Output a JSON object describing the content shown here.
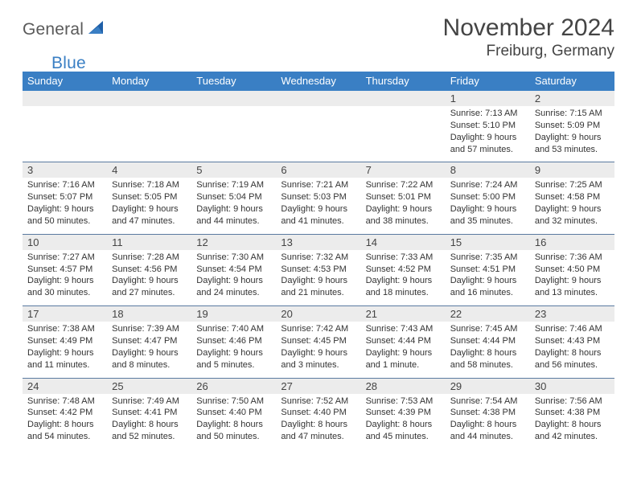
{
  "brand": {
    "part1": "General",
    "part2": "Blue"
  },
  "title": "November 2024",
  "location": "Freiburg, Germany",
  "colors": {
    "header_bg": "#3a7fc4",
    "header_text": "#ffffff",
    "daynum_bg": "#ececec",
    "row_border": "#5a7aa0",
    "text": "#333333",
    "title_text": "#444444",
    "logo_gray": "#5a5a5a",
    "logo_blue": "#3a7fc4"
  },
  "typography": {
    "title_fontsize": 30,
    "location_fontsize": 19,
    "weekday_fontsize": 13,
    "daynum_fontsize": 13,
    "cell_fontsize": 11
  },
  "weekdays": [
    "Sunday",
    "Monday",
    "Tuesday",
    "Wednesday",
    "Thursday",
    "Friday",
    "Saturday"
  ],
  "weeks": [
    [
      null,
      null,
      null,
      null,
      null,
      {
        "day": "1",
        "sunrise": "Sunrise: 7:13 AM",
        "sunset": "Sunset: 5:10 PM",
        "daylight": "Daylight: 9 hours and 57 minutes."
      },
      {
        "day": "2",
        "sunrise": "Sunrise: 7:15 AM",
        "sunset": "Sunset: 5:09 PM",
        "daylight": "Daylight: 9 hours and 53 minutes."
      }
    ],
    [
      {
        "day": "3",
        "sunrise": "Sunrise: 7:16 AM",
        "sunset": "Sunset: 5:07 PM",
        "daylight": "Daylight: 9 hours and 50 minutes."
      },
      {
        "day": "4",
        "sunrise": "Sunrise: 7:18 AM",
        "sunset": "Sunset: 5:05 PM",
        "daylight": "Daylight: 9 hours and 47 minutes."
      },
      {
        "day": "5",
        "sunrise": "Sunrise: 7:19 AM",
        "sunset": "Sunset: 5:04 PM",
        "daylight": "Daylight: 9 hours and 44 minutes."
      },
      {
        "day": "6",
        "sunrise": "Sunrise: 7:21 AM",
        "sunset": "Sunset: 5:03 PM",
        "daylight": "Daylight: 9 hours and 41 minutes."
      },
      {
        "day": "7",
        "sunrise": "Sunrise: 7:22 AM",
        "sunset": "Sunset: 5:01 PM",
        "daylight": "Daylight: 9 hours and 38 minutes."
      },
      {
        "day": "8",
        "sunrise": "Sunrise: 7:24 AM",
        "sunset": "Sunset: 5:00 PM",
        "daylight": "Daylight: 9 hours and 35 minutes."
      },
      {
        "day": "9",
        "sunrise": "Sunrise: 7:25 AM",
        "sunset": "Sunset: 4:58 PM",
        "daylight": "Daylight: 9 hours and 32 minutes."
      }
    ],
    [
      {
        "day": "10",
        "sunrise": "Sunrise: 7:27 AM",
        "sunset": "Sunset: 4:57 PM",
        "daylight": "Daylight: 9 hours and 30 minutes."
      },
      {
        "day": "11",
        "sunrise": "Sunrise: 7:28 AM",
        "sunset": "Sunset: 4:56 PM",
        "daylight": "Daylight: 9 hours and 27 minutes."
      },
      {
        "day": "12",
        "sunrise": "Sunrise: 7:30 AM",
        "sunset": "Sunset: 4:54 PM",
        "daylight": "Daylight: 9 hours and 24 minutes."
      },
      {
        "day": "13",
        "sunrise": "Sunrise: 7:32 AM",
        "sunset": "Sunset: 4:53 PM",
        "daylight": "Daylight: 9 hours and 21 minutes."
      },
      {
        "day": "14",
        "sunrise": "Sunrise: 7:33 AM",
        "sunset": "Sunset: 4:52 PM",
        "daylight": "Daylight: 9 hours and 18 minutes."
      },
      {
        "day": "15",
        "sunrise": "Sunrise: 7:35 AM",
        "sunset": "Sunset: 4:51 PM",
        "daylight": "Daylight: 9 hours and 16 minutes."
      },
      {
        "day": "16",
        "sunrise": "Sunrise: 7:36 AM",
        "sunset": "Sunset: 4:50 PM",
        "daylight": "Daylight: 9 hours and 13 minutes."
      }
    ],
    [
      {
        "day": "17",
        "sunrise": "Sunrise: 7:38 AM",
        "sunset": "Sunset: 4:49 PM",
        "daylight": "Daylight: 9 hours and 11 minutes."
      },
      {
        "day": "18",
        "sunrise": "Sunrise: 7:39 AM",
        "sunset": "Sunset: 4:47 PM",
        "daylight": "Daylight: 9 hours and 8 minutes."
      },
      {
        "day": "19",
        "sunrise": "Sunrise: 7:40 AM",
        "sunset": "Sunset: 4:46 PM",
        "daylight": "Daylight: 9 hours and 5 minutes."
      },
      {
        "day": "20",
        "sunrise": "Sunrise: 7:42 AM",
        "sunset": "Sunset: 4:45 PM",
        "daylight": "Daylight: 9 hours and 3 minutes."
      },
      {
        "day": "21",
        "sunrise": "Sunrise: 7:43 AM",
        "sunset": "Sunset: 4:44 PM",
        "daylight": "Daylight: 9 hours and 1 minute."
      },
      {
        "day": "22",
        "sunrise": "Sunrise: 7:45 AM",
        "sunset": "Sunset: 4:44 PM",
        "daylight": "Daylight: 8 hours and 58 minutes."
      },
      {
        "day": "23",
        "sunrise": "Sunrise: 7:46 AM",
        "sunset": "Sunset: 4:43 PM",
        "daylight": "Daylight: 8 hours and 56 minutes."
      }
    ],
    [
      {
        "day": "24",
        "sunrise": "Sunrise: 7:48 AM",
        "sunset": "Sunset: 4:42 PM",
        "daylight": "Daylight: 8 hours and 54 minutes."
      },
      {
        "day": "25",
        "sunrise": "Sunrise: 7:49 AM",
        "sunset": "Sunset: 4:41 PM",
        "daylight": "Daylight: 8 hours and 52 minutes."
      },
      {
        "day": "26",
        "sunrise": "Sunrise: 7:50 AM",
        "sunset": "Sunset: 4:40 PM",
        "daylight": "Daylight: 8 hours and 50 minutes."
      },
      {
        "day": "27",
        "sunrise": "Sunrise: 7:52 AM",
        "sunset": "Sunset: 4:40 PM",
        "daylight": "Daylight: 8 hours and 47 minutes."
      },
      {
        "day": "28",
        "sunrise": "Sunrise: 7:53 AM",
        "sunset": "Sunset: 4:39 PM",
        "daylight": "Daylight: 8 hours and 45 minutes."
      },
      {
        "day": "29",
        "sunrise": "Sunrise: 7:54 AM",
        "sunset": "Sunset: 4:38 PM",
        "daylight": "Daylight: 8 hours and 44 minutes."
      },
      {
        "day": "30",
        "sunrise": "Sunrise: 7:56 AM",
        "sunset": "Sunset: 4:38 PM",
        "daylight": "Daylight: 8 hours and 42 minutes."
      }
    ]
  ]
}
